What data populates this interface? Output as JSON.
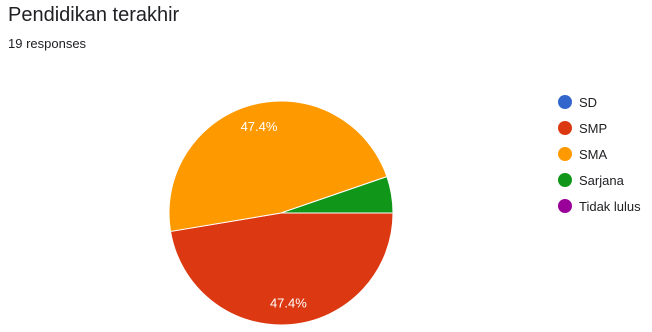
{
  "header": {
    "title": "Pendidikan terakhir",
    "responses": "19 responses"
  },
  "chart_data": {
    "type": "pie",
    "categories": [
      "SD",
      "SMP",
      "SMA",
      "Sarjana",
      "Tidak lulus"
    ],
    "values": [
      0,
      9,
      9,
      1,
      0
    ],
    "colors": [
      "#3366cc",
      "#dc3912",
      "#ff9900",
      "#109618",
      "#990099"
    ],
    "data_labels": [
      "",
      "47.4%",
      "47.4%",
      "",
      ""
    ],
    "legend_position": "right"
  }
}
